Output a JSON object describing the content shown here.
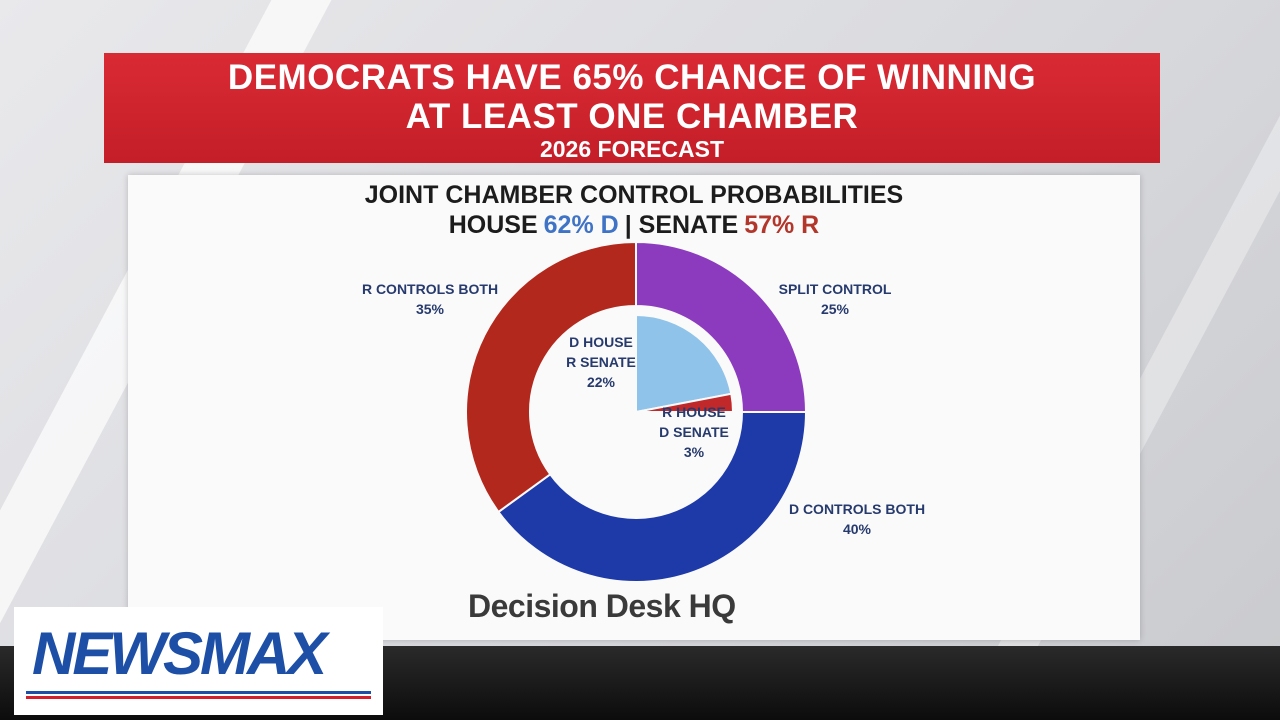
{
  "banner": {
    "headline": [
      "DEMOCRATS HAVE 65% CHANCE OF WINNING",
      "AT LEAST ONE CHAMBER"
    ],
    "forecast": "2026 FORECAST"
  },
  "chart_data": {
    "type": "donut",
    "title": "JOINT CHAMBER CONTROL PROBABILITIES",
    "subtitle": [
      {
        "text": "HOUSE",
        "color": "#1c1c1c"
      },
      {
        "text": "62% D",
        "color": "#3f73c6"
      },
      {
        "text": "| SENATE",
        "color": "#1c1c1c"
      },
      {
        "text": "57% R",
        "color": "#b3362b"
      }
    ],
    "rings": [
      {
        "categories": [
          "SPLIT CONTROL",
          "D CONTROLS BOTH",
          "R CONTROLS BOTH"
        ],
        "values": [
          25,
          40,
          35
        ],
        "value_labels": [
          "25%",
          "40%",
          "35%"
        ],
        "colors": [
          "#8c3bbf",
          "#1d3aa8",
          "#b3281c"
        ]
      },
      {
        "categories": [
          "D HOUSE\nR SENATE",
          "R HOUSE\nD SENATE"
        ],
        "values": [
          22,
          3
        ],
        "value_labels": [
          "22%",
          "3%"
        ],
        "colors": [
          "#8fc3ea",
          "#c0282a"
        ]
      }
    ]
  },
  "source": "Decision Desk HQ",
  "network": "NEWSMAX"
}
